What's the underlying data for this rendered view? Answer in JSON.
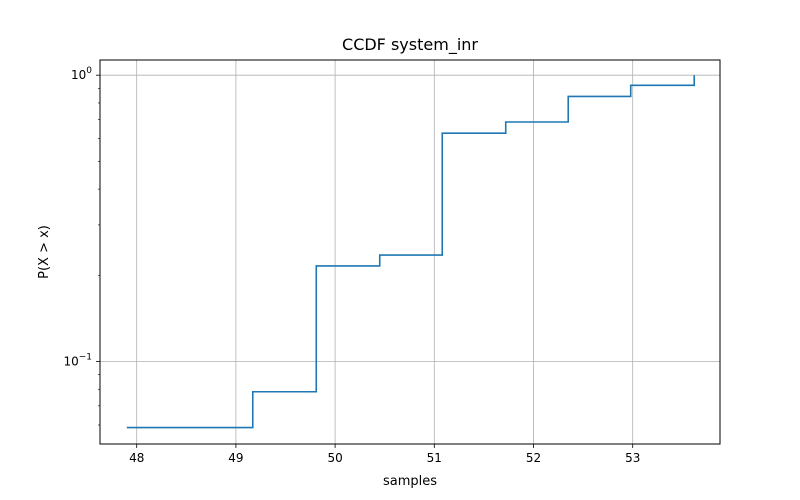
{
  "chart_data": {
    "type": "line",
    "title": "CCDF system_inr",
    "xlabel": "samples",
    "ylabel": "P(X > x)",
    "xlim": [
      47.63,
      53.88
    ],
    "ylim": [
      0.0515,
      1.13
    ],
    "yscale": "log",
    "grid": true,
    "x_ticks": [
      48,
      49,
      50,
      51,
      52,
      53
    ],
    "x_tick_labels": [
      "48",
      "49",
      "50",
      "51",
      "52",
      "53"
    ],
    "y_ticks": [
      {
        "value": 0.1,
        "base": "10",
        "exp": "−1"
      },
      {
        "value": 1.0,
        "base": "10",
        "exp": "0"
      }
    ],
    "step": "post",
    "series": [
      {
        "color": "#1f77b4",
        "x": [
          47.9,
          49.17,
          49.81,
          50.45,
          51.08,
          51.72,
          52.35,
          52.98,
          53.62
        ],
        "y": [
          0.0588,
          0.0784,
          0.2157,
          0.2353,
          0.6275,
          0.6863,
          0.8431,
          0.9216,
          1.0
        ]
      }
    ]
  }
}
